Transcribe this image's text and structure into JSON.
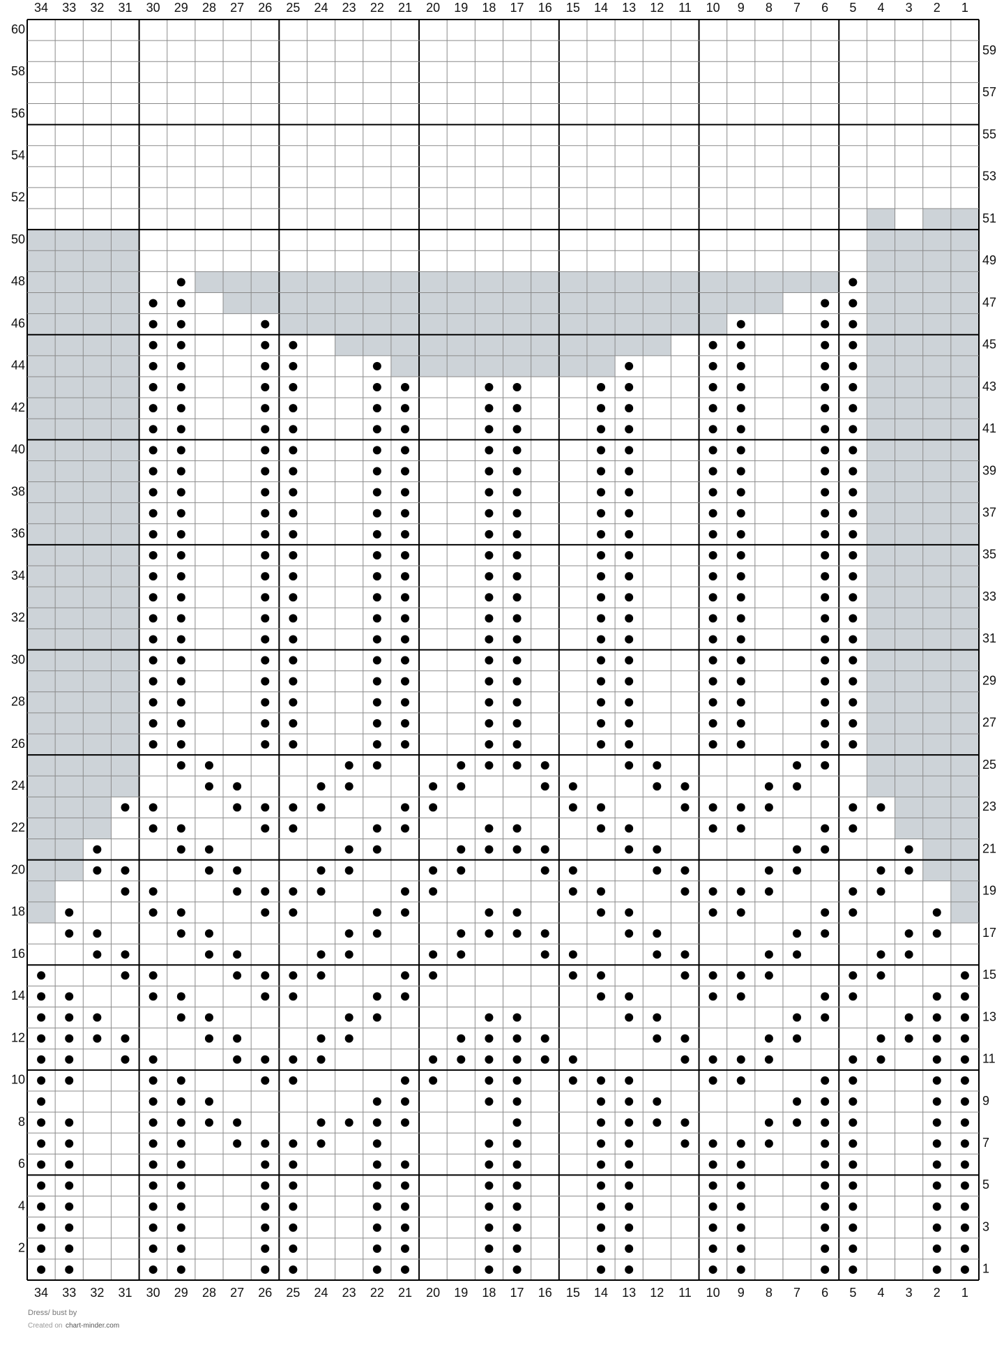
{
  "grid": {
    "columns": [
      34,
      33,
      32,
      31,
      30,
      29,
      28,
      27,
      26,
      25,
      24,
      23,
      22,
      21,
      20,
      19,
      18,
      17,
      16,
      15,
      14,
      13,
      12,
      11,
      10,
      9,
      8,
      7,
      6,
      5,
      4,
      3,
      2,
      1
    ],
    "rows": [
      60,
      59,
      58,
      57,
      56,
      55,
      54,
      53,
      52,
      51,
      50,
      49,
      48,
      47,
      46,
      45,
      44,
      43,
      42,
      41,
      40,
      39,
      38,
      37,
      36,
      35,
      34,
      33,
      32,
      31,
      30,
      29,
      28,
      27,
      26,
      25,
      24,
      23,
      22,
      21,
      20,
      19,
      18,
      17,
      16,
      15,
      14,
      13,
      12,
      11,
      10,
      9,
      8,
      7,
      6,
      5,
      4,
      3,
      2,
      1
    ],
    "cells": [
      "..................................",
      "..................................",
      "..................................",
      "..................................",
      "..................................",
      "..................................",
      "..................................",
      "..................................",
      "..................................",
      "..............................#.##",
      "####..........................####",
      "####..........................####",
      "####.o#######################o####",
      "####oo.####################.oo####",
      "####oo..o################o..oo####",
      "####oo..oo.############.oo..oo####",
      "####oo..oo..o########o..oo..oo####",
      "####oo..oo..oo..oo..oo..oo..oo####",
      "####oo..oo..oo..oo..oo..oo..oo####",
      "####oo..oo..oo..oo..oo..oo..oo####",
      "####oo..oo..oo..oo..oo..oo..oo####",
      "####oo..oo..oo..oo..oo..oo..oo####",
      "####oo..oo..oo..oo..oo..oo..oo####",
      "####oo..oo..oo..oo..oo..oo..oo####",
      "####oo..oo..oo..oo..oo..oo..oo####",
      "####oo..oo..oo..oo..oo..oo..oo####",
      "####oo..oo..oo..oo..oo..oo..oo####",
      "####oo..oo..oo..oo..oo..oo..oo####",
      "####oo..oo..oo..oo..oo..oo..oo####",
      "####oo..oo..oo..oo..oo..oo..oo####",
      "####oo..oo..oo..oo..oo..oo..oo####",
      "####oo..oo..oo..oo..oo..oo..oo####",
      "####oo..oo..oo..oo..oo..oo..oo####",
      "####oo..oo..oo..oo..oo..oo..oo####",
      "####oo..oo..oo..oo..oo..oo..oo####",
      "####.oo....oo..oooo..oo....oo.####",
      "####..oo..oo..oo..oo..oo..oo..####",
      "###oo..oooo..oo....oo..oooo..oo###",
      "###.oo..oo..oo..oo..oo..oo..oo.###",
      "##o..oo....oo..oooo..oo....oo..o##",
      "##oo..oo..oo..oo..oo..oo..oo..oo##",
      "#..oo..oooo..oo....oo..oooo..oo..#",
      "#o..oo..oo..oo..oo..oo..oo..oo..o#",
      ".oo..oo....oo..oooo..oo....oo..oo.",
      "..oo..oo..oo..oo..oo..oo..oo..oo..",
      "o..oo..oooo..oo....oo..oooo..oo..o",
      "oo..oo..oo..oo......oo..oo..oo..oo",
      "ooo..oo....oo...oo...oo....oo..ooo",
      "oooo..oo..oo...oooo...oo..oo..oooo",
      "oo.oo..oooo...oooooo...oooo..oo.oo",
      "oo..oo..oo...oo.oo.ooo..oo..oo..oo",
      "o...ooo.....oo..oo..ooo....ooo..oo",
      "oo..oooo..oooo...o..oooo..oooo..oo",
      "oo..oo.oooo.o...oo..oo.oooo.oo..oo",
      "oo..oo..oo..oo..oo..oo..oo..oo..oo",
      "oo..oo..oo..oo..oo..oo..oo..oo..oo",
      "oo..oo..oo..oo..oo..oo..oo..oo..oo",
      "oo..oo..oo..oo..oo..oo..oo..oo..oo",
      "oo..oo..oo..oo..oo..oo..oo..oo..oo",
      "oo..oo..oo..oo..oo..oo..oo..oo..oo"
    ],
    "shade_color": "#cdd3d8",
    "dot_color": "#000000"
  },
  "footer": {
    "line1": "Dress/ bust by",
    "created_prefix": "Created on",
    "site": "chart-minder.com"
  }
}
